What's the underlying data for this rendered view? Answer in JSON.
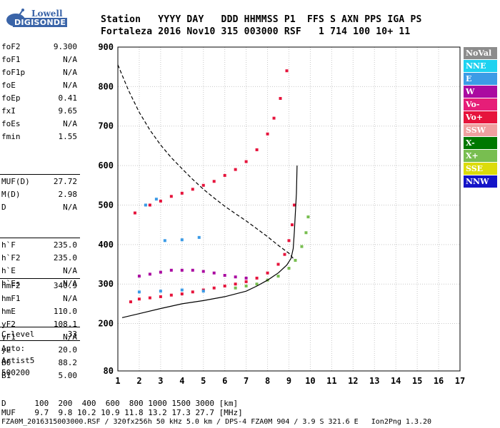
{
  "logo": {
    "top": "Lowell",
    "bottom": "DIGISONDE"
  },
  "header": {
    "labels_line": "Station   YYYY DAY   DDD HHMMSS P1  FFS S AXN PPS IGA PS",
    "values_line": "Fortaleza 2016 Nov10 315 003000 RSF   1 714 100 10+ 11"
  },
  "params": {
    "group1": [
      {
        "name": "foF2",
        "value": "9.300"
      },
      {
        "name": "foF1",
        "value": "N/A"
      },
      {
        "name": "foF1p",
        "value": "N/A"
      },
      {
        "name": "foE",
        "value": "N/A"
      },
      {
        "name": "foEp",
        "value": "0.41"
      },
      {
        "name": "fxI",
        "value": "9.65"
      },
      {
        "name": "foEs",
        "value": "N/A"
      },
      {
        "name": "fmin",
        "value": "1.55"
      }
    ],
    "group2": [
      {
        "name": "MUF(D)",
        "value": "27.72"
      },
      {
        "name": "M(D)",
        "value": "2.98"
      },
      {
        "name": "D",
        "value": "N/A"
      }
    ],
    "group3": [
      {
        "name": "h`F",
        "value": "235.0"
      },
      {
        "name": "h`F2",
        "value": "235.0"
      },
      {
        "name": "h`E",
        "value": "N/A"
      },
      {
        "name": "h`Es",
        "value": "N/A"
      }
    ],
    "group4": [
      {
        "name": "hmF2",
        "value": "340.9"
      },
      {
        "name": "hmF1",
        "value": "N/A"
      },
      {
        "name": "hmE",
        "value": "110.0"
      },
      {
        "name": "yF2",
        "value": "108.1"
      },
      {
        "name": "yF1",
        "value": "N/A"
      },
      {
        "name": "yE",
        "value": "20.0"
      },
      {
        "name": "B0",
        "value": "88.2"
      },
      {
        "name": "B1",
        "value": "5.00"
      }
    ],
    "group5": [
      {
        "name": "C-level",
        "value": "33"
      }
    ]
  },
  "auto": {
    "line1": "Auto:",
    "line2": "Artist5",
    "line3": "500200"
  },
  "legend": [
    {
      "label": "NoVal",
      "color": "#8c8c8c"
    },
    {
      "label": "NNE",
      "color": "#1ed2f0"
    },
    {
      "label": "E",
      "color": "#3c9be6"
    },
    {
      "label": "W",
      "color": "#aa0aa0"
    },
    {
      "label": "Vo-",
      "color": "#e61e78"
    },
    {
      "label": "Vo+",
      "color": "#e6143c"
    },
    {
      "label": "SSW",
      "color": "#f0a0a0"
    },
    {
      "label": "X-",
      "color": "#007800"
    },
    {
      "label": "X+",
      "color": "#78be50"
    },
    {
      "label": "SSE",
      "color": "#dcdc0a"
    },
    {
      "label": "NNW",
      "color": "#1414c8"
    }
  ],
  "footer": {
    "line1": "D      100  200  400  600  800 1000 1500 3000 [km]",
    "line2": "MUF    9.7  9.8 10.2 10.9 11.8 13.2 17.3 27.7 [MHz]",
    "line3": "FZA0M_2016315003000.RSF / 320fx256h 50 kHz 5.0 km / DPS-4 FZA0M 904 / 3.9 S 321.6 E   Ion2Png 1.3.20"
  },
  "chart_data": {
    "type": "scatter",
    "xlim": [
      1,
      17
    ],
    "ylim": [
      80,
      900
    ],
    "x_ticks": [
      1,
      2,
      3,
      4,
      5,
      6,
      7,
      8,
      9,
      10,
      11,
      12,
      13,
      14,
      15,
      16,
      17
    ],
    "y_ticks": [
      80,
      200,
      300,
      400,
      500,
      600,
      700,
      800,
      900
    ],
    "grid": true,
    "legend_position": "right",
    "series": [
      {
        "name": "F2 ordinary trace (Vo+)",
        "color": "#e6143c",
        "points": [
          [
            1.6,
            255
          ],
          [
            2,
            262
          ],
          [
            2.5,
            265
          ],
          [
            3,
            268
          ],
          [
            3.5,
            272
          ],
          [
            4,
            275
          ],
          [
            4.5,
            280
          ],
          [
            5,
            285
          ],
          [
            5.5,
            290
          ],
          [
            6,
            295
          ],
          [
            6.5,
            300
          ],
          [
            7,
            306
          ],
          [
            7.5,
            315
          ],
          [
            8,
            328
          ],
          [
            8.5,
            350
          ],
          [
            8.8,
            375
          ],
          [
            9,
            410
          ],
          [
            9.15,
            450
          ],
          [
            9.25,
            500
          ]
        ]
      },
      {
        "name": "F2 extraordinary trace (X+)",
        "color": "#78be50",
        "points": [
          [
            6.5,
            290
          ],
          [
            7,
            295
          ],
          [
            7.5,
            300
          ],
          [
            8,
            310
          ],
          [
            8.5,
            320
          ],
          [
            9,
            340
          ],
          [
            9.3,
            360
          ],
          [
            9.6,
            395
          ],
          [
            9.8,
            430
          ],
          [
            9.9,
            470
          ]
        ]
      },
      {
        "name": "second-hop trace",
        "color": "#e6143c",
        "points": [
          [
            1.8,
            480
          ],
          [
            2.5,
            500
          ],
          [
            3,
            510
          ],
          [
            3.5,
            522
          ],
          [
            4,
            530
          ],
          [
            4.5,
            540
          ],
          [
            5,
            550
          ],
          [
            5.5,
            560
          ],
          [
            6,
            575
          ],
          [
            6.5,
            590
          ],
          [
            7,
            610
          ],
          [
            7.5,
            640
          ],
          [
            8,
            680
          ],
          [
            8.3,
            720
          ],
          [
            8.6,
            770
          ],
          [
            8.9,
            840
          ]
        ]
      },
      {
        "name": "oblique trace (W)",
        "color": "#aa0aa0",
        "points": [
          [
            2,
            320
          ],
          [
            2.5,
            325
          ],
          [
            3,
            330
          ],
          [
            3.5,
            335
          ],
          [
            4,
            335
          ],
          [
            4.5,
            335
          ],
          [
            5,
            332
          ],
          [
            5.5,
            328
          ],
          [
            6,
            322
          ],
          [
            6.5,
            318
          ],
          [
            7,
            315
          ]
        ]
      },
      {
        "name": "E (blue)",
        "color": "#3c9be6",
        "points": [
          [
            2,
            280
          ],
          [
            3,
            282
          ],
          [
            4,
            285
          ],
          [
            5,
            282
          ],
          [
            3.2,
            410
          ],
          [
            4,
            412
          ],
          [
            4.8,
            418
          ],
          [
            2.3,
            500
          ],
          [
            2.8,
            515
          ]
        ]
      }
    ],
    "curves": [
      {
        "name": "profile (solid)",
        "style": "solid",
        "points": [
          [
            1.2,
            215
          ],
          [
            2,
            225
          ],
          [
            3,
            238
          ],
          [
            4,
            250
          ],
          [
            5,
            258
          ],
          [
            6,
            268
          ],
          [
            7,
            282
          ],
          [
            7.5,
            295
          ],
          [
            8,
            310
          ],
          [
            8.5,
            328
          ],
          [
            8.9,
            348
          ],
          [
            9.1,
            365
          ],
          [
            9.2,
            390
          ],
          [
            9.25,
            430
          ],
          [
            9.3,
            480
          ],
          [
            9.35,
            530
          ],
          [
            9.38,
            600
          ]
        ]
      },
      {
        "name": "MUF (dashed)",
        "style": "dashed",
        "points": [
          [
            1,
            855
          ],
          [
            1.5,
            790
          ],
          [
            2,
            735
          ],
          [
            2.5,
            690
          ],
          [
            3,
            652
          ],
          [
            3.5,
            620
          ],
          [
            4,
            592
          ],
          [
            4.5,
            565
          ],
          [
            5,
            540
          ],
          [
            5.5,
            518
          ],
          [
            6,
            497
          ],
          [
            6.5,
            478
          ],
          [
            7,
            460
          ],
          [
            7.5,
            440
          ],
          [
            8,
            420
          ],
          [
            8.5,
            398
          ],
          [
            9,
            378
          ],
          [
            9.2,
            365
          ]
        ]
      }
    ]
  }
}
